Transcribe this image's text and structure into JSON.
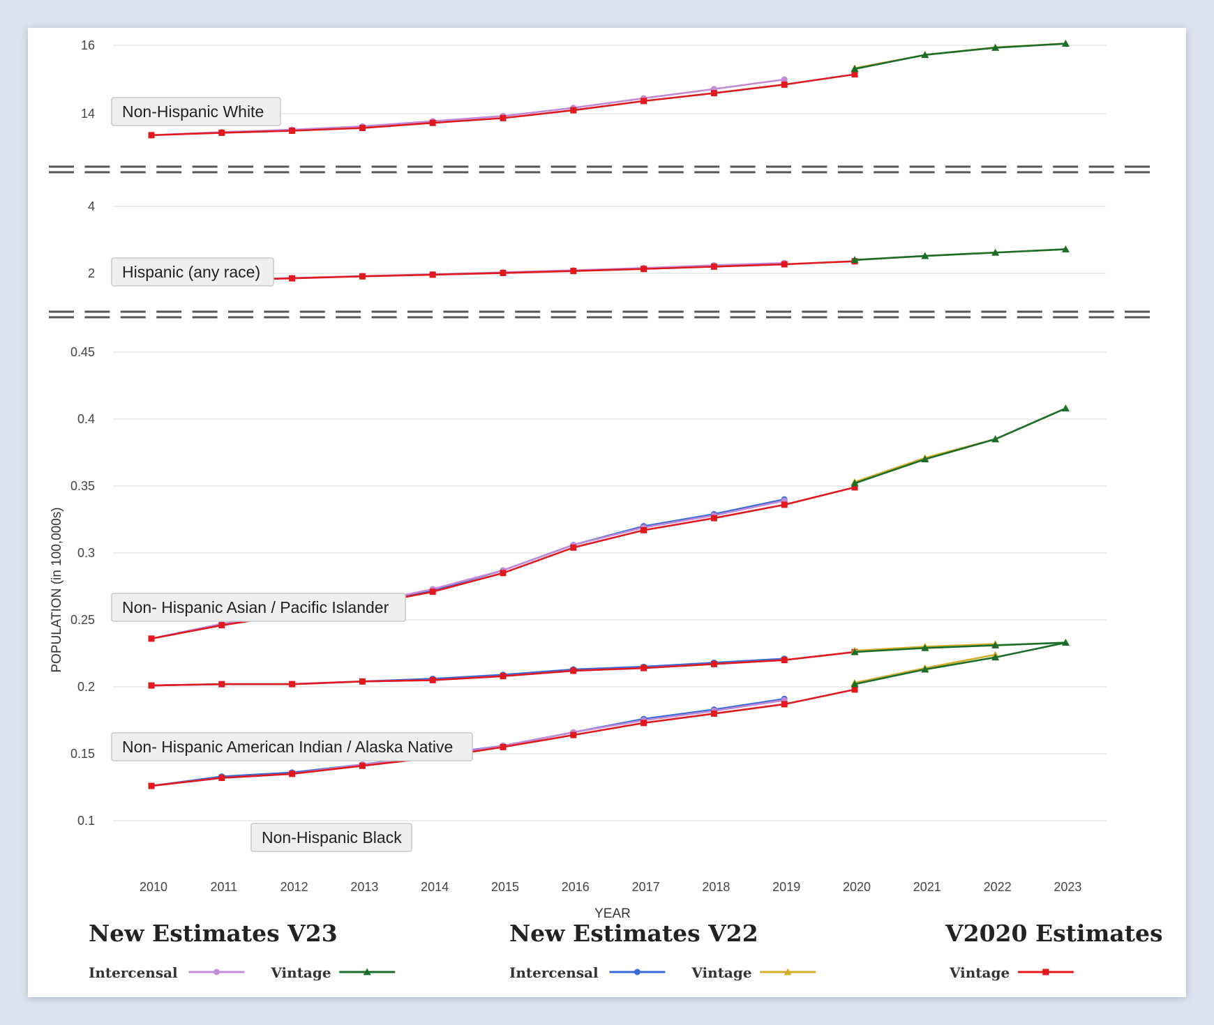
{
  "chart_data": {
    "type": "line",
    "xlabel": "YEAR",
    "ylabel": "POPULATION (in 100,000s)",
    "x_ticks": [
      "2010",
      "2011",
      "2012",
      "2013",
      "2014",
      "2015",
      "2016",
      "2017",
      "2018",
      "2019",
      "2020",
      "2021",
      "2022",
      "2023"
    ],
    "grid": true,
    "panels": [
      {
        "label": "Non-Hispanic White",
        "y_ticks": [
          "14",
          "16"
        ],
        "ylim": [
          13.0,
          16.4
        ],
        "series": [
          {
            "key": "v23_inter",
            "x": [
              2010,
              2011,
              2012,
              2013,
              2014,
              2015,
              2016,
              2017,
              2018,
              2019
            ],
            "values": [
              13.37,
              13.46,
              13.53,
              13.63,
              13.78,
              13.93,
              14.17,
              14.45,
              14.72,
              15.0
            ]
          },
          {
            "key": "v20_vint",
            "x": [
              2010,
              2011,
              2012,
              2013,
              2014,
              2015,
              2016,
              2017,
              2018,
              2019,
              2020
            ],
            "values": [
              13.37,
              13.44,
              13.5,
              13.58,
              13.73,
              13.87,
              14.1,
              14.37,
              14.6,
              14.85,
              15.15
            ]
          },
          {
            "key": "v22_vint",
            "x": [
              2020,
              2021,
              2022,
              2023
            ],
            "values": [
              15.33,
              15.72,
              15.94,
              16.05
            ]
          },
          {
            "key": "v23_vint",
            "x": [
              2020,
              2021,
              2022,
              2023
            ],
            "values": [
              15.31,
              15.72,
              15.93,
              16.05
            ]
          }
        ]
      },
      {
        "label": "Hispanic (any race)",
        "y_ticks": [
          "2",
          "4"
        ],
        "ylim": [
          1.4,
          4.4
        ],
        "series": [
          {
            "key": "v23_inter",
            "x": [
              2010,
              2011,
              2012,
              2013,
              2014,
              2015,
              2016,
              2017,
              2018,
              2019
            ],
            "values": [
              1.76,
              1.81,
              1.86,
              1.92,
              1.97,
              2.03,
              2.09,
              2.16,
              2.24,
              2.31
            ]
          },
          {
            "key": "v20_vint",
            "x": [
              2010,
              2011,
              2012,
              2013,
              2014,
              2015,
              2016,
              2017,
              2018,
              2019,
              2020
            ],
            "values": [
              1.76,
              1.8,
              1.85,
              1.91,
              1.96,
              2.01,
              2.07,
              2.13,
              2.2,
              2.27,
              2.36
            ]
          },
          {
            "key": "v22_vint",
            "x": [
              2020,
              2021,
              2022,
              2023
            ],
            "values": [
              2.4,
              2.52,
              2.62,
              2.72
            ]
          },
          {
            "key": "v23_vint",
            "x": [
              2020,
              2021,
              2022,
              2023
            ],
            "values": [
              2.4,
              2.52,
              2.62,
              2.72
            ]
          }
        ]
      },
      {
        "label_positions": "multiple",
        "y_ticks": [
          "0.1",
          "0.15",
          "0.2",
          "0.25",
          "0.3",
          "0.35",
          "0.4",
          "0.45"
        ],
        "ylim": [
          0.1,
          0.45
        ],
        "labels": [
          "Non- Hispanic Asian / Pacific Islander",
          "Non- Hispanic American Indian / Alaska Native",
          "Non-Hispanic Black"
        ],
        "series": [
          {
            "key": "v23_inter",
            "group": "asian",
            "x": [
              2010,
              2011,
              2012,
              2013,
              2014,
              2015,
              2016,
              2017,
              2018,
              2019
            ],
            "values": [
              0.236,
              0.247,
              0.255,
              0.262,
              0.273,
              0.287,
              0.306,
              0.319,
              0.328,
              0.339
            ]
          },
          {
            "key": "v22_inter",
            "group": "asian",
            "x": [
              2010,
              2011,
              2012,
              2013,
              2014,
              2015,
              2016,
              2017,
              2018,
              2019
            ],
            "values": [
              0.236,
              0.247,
              0.255,
              0.262,
              0.272,
              0.287,
              0.306,
              0.32,
              0.329,
              0.34
            ]
          },
          {
            "key": "v20_vint",
            "group": "asian",
            "x": [
              2010,
              2011,
              2012,
              2013,
              2014,
              2015,
              2016,
              2017,
              2018,
              2019,
              2020
            ],
            "values": [
              0.236,
              0.246,
              0.254,
              0.261,
              0.271,
              0.285,
              0.304,
              0.317,
              0.326,
              0.336,
              0.349
            ]
          },
          {
            "key": "v22_vint",
            "group": "asian",
            "x": [
              2020,
              2021,
              2022,
              2023
            ],
            "values": [
              0.353,
              0.371,
              0.385,
              0.408
            ]
          },
          {
            "key": "v23_vint",
            "group": "asian",
            "x": [
              2020,
              2021,
              2022,
              2023
            ],
            "values": [
              0.352,
              0.37,
              0.385,
              0.408
            ]
          },
          {
            "key": "v23_inter",
            "group": "aian",
            "x": [
              2010,
              2011,
              2012,
              2013,
              2014,
              2015,
              2016,
              2017,
              2018,
              2019
            ],
            "values": [
              0.201,
              0.202,
              0.202,
              0.204,
              0.205,
              0.208,
              0.212,
              0.214,
              0.217,
              0.22
            ]
          },
          {
            "key": "v22_inter",
            "group": "aian",
            "x": [
              2010,
              2011,
              2012,
              2013,
              2014,
              2015,
              2016,
              2017,
              2018,
              2019
            ],
            "values": [
              0.201,
              0.202,
              0.202,
              0.204,
              0.206,
              0.209,
              0.213,
              0.215,
              0.218,
              0.221
            ]
          },
          {
            "key": "v20_vint",
            "group": "aian",
            "x": [
              2010,
              2011,
              2012,
              2013,
              2014,
              2015,
              2016,
              2017,
              2018,
              2019,
              2020
            ],
            "values": [
              0.201,
              0.202,
              0.202,
              0.204,
              0.205,
              0.208,
              0.212,
              0.214,
              0.217,
              0.22,
              0.226
            ]
          },
          {
            "key": "v22_vint",
            "group": "aian",
            "x": [
              2020,
              2021,
              2022
            ],
            "values": [
              0.227,
              0.23,
              0.232
            ]
          },
          {
            "key": "v23_vint",
            "group": "aian",
            "x": [
              2020,
              2021,
              2022,
              2023
            ],
            "values": [
              0.226,
              0.229,
              0.231,
              0.233
            ]
          },
          {
            "key": "v23_inter",
            "group": "black",
            "x": [
              2010,
              2011,
              2012,
              2013,
              2014,
              2015,
              2016,
              2017,
              2018,
              2019
            ],
            "values": [
              0.126,
              0.132,
              0.135,
              0.142,
              0.148,
              0.156,
              0.166,
              0.175,
              0.182,
              0.19
            ]
          },
          {
            "key": "v22_inter",
            "group": "black",
            "x": [
              2010,
              2011,
              2012,
              2013,
              2014,
              2015,
              2016,
              2017,
              2018,
              2019
            ],
            "values": [
              0.126,
              0.133,
              0.136,
              0.142,
              0.149,
              0.156,
              0.166,
              0.176,
              0.183,
              0.191
            ]
          },
          {
            "key": "v20_vint",
            "group": "black",
            "x": [
              2010,
              2011,
              2012,
              2013,
              2014,
              2015,
              2016,
              2017,
              2018,
              2019,
              2020
            ],
            "values": [
              0.126,
              0.132,
              0.135,
              0.141,
              0.147,
              0.155,
              0.164,
              0.173,
              0.18,
              0.187,
              0.198
            ]
          },
          {
            "key": "v22_vint",
            "group": "black",
            "x": [
              2020,
              2021,
              2022
            ],
            "values": [
              0.203,
              0.214,
              0.224
            ]
          },
          {
            "key": "v23_vint",
            "group": "black",
            "x": [
              2020,
              2021,
              2022,
              2023
            ],
            "values": [
              0.202,
              0.213,
              0.222,
              0.233
            ]
          }
        ]
      }
    ]
  },
  "series_styles": {
    "v23_inter": {
      "color": "#c38ad6",
      "marker": "circle"
    },
    "v23_vint": {
      "color": "#1b6e2a",
      "marker": "triangle"
    },
    "v22_inter": {
      "color": "#3a6ad8",
      "marker": "circle"
    },
    "v22_vint": {
      "color": "#d4ae2a",
      "marker": "triangle"
    },
    "v20_vint": {
      "color": "#e0191f",
      "marker": "square"
    }
  },
  "legend": {
    "groups": [
      {
        "title": "New Estimates V23",
        "items": [
          {
            "label": "Intercensal",
            "key": "v23_inter"
          },
          {
            "label": "Vintage",
            "key": "v23_vint"
          }
        ]
      },
      {
        "title": "New Estimates V22",
        "items": [
          {
            "label": "Intercensal",
            "key": "v22_inter"
          },
          {
            "label": "Vintage",
            "key": "v22_vint"
          }
        ]
      },
      {
        "title": "V2020 Estimates",
        "items": [
          {
            "label": "Vintage",
            "key": "v20_vint"
          }
        ]
      }
    ]
  }
}
